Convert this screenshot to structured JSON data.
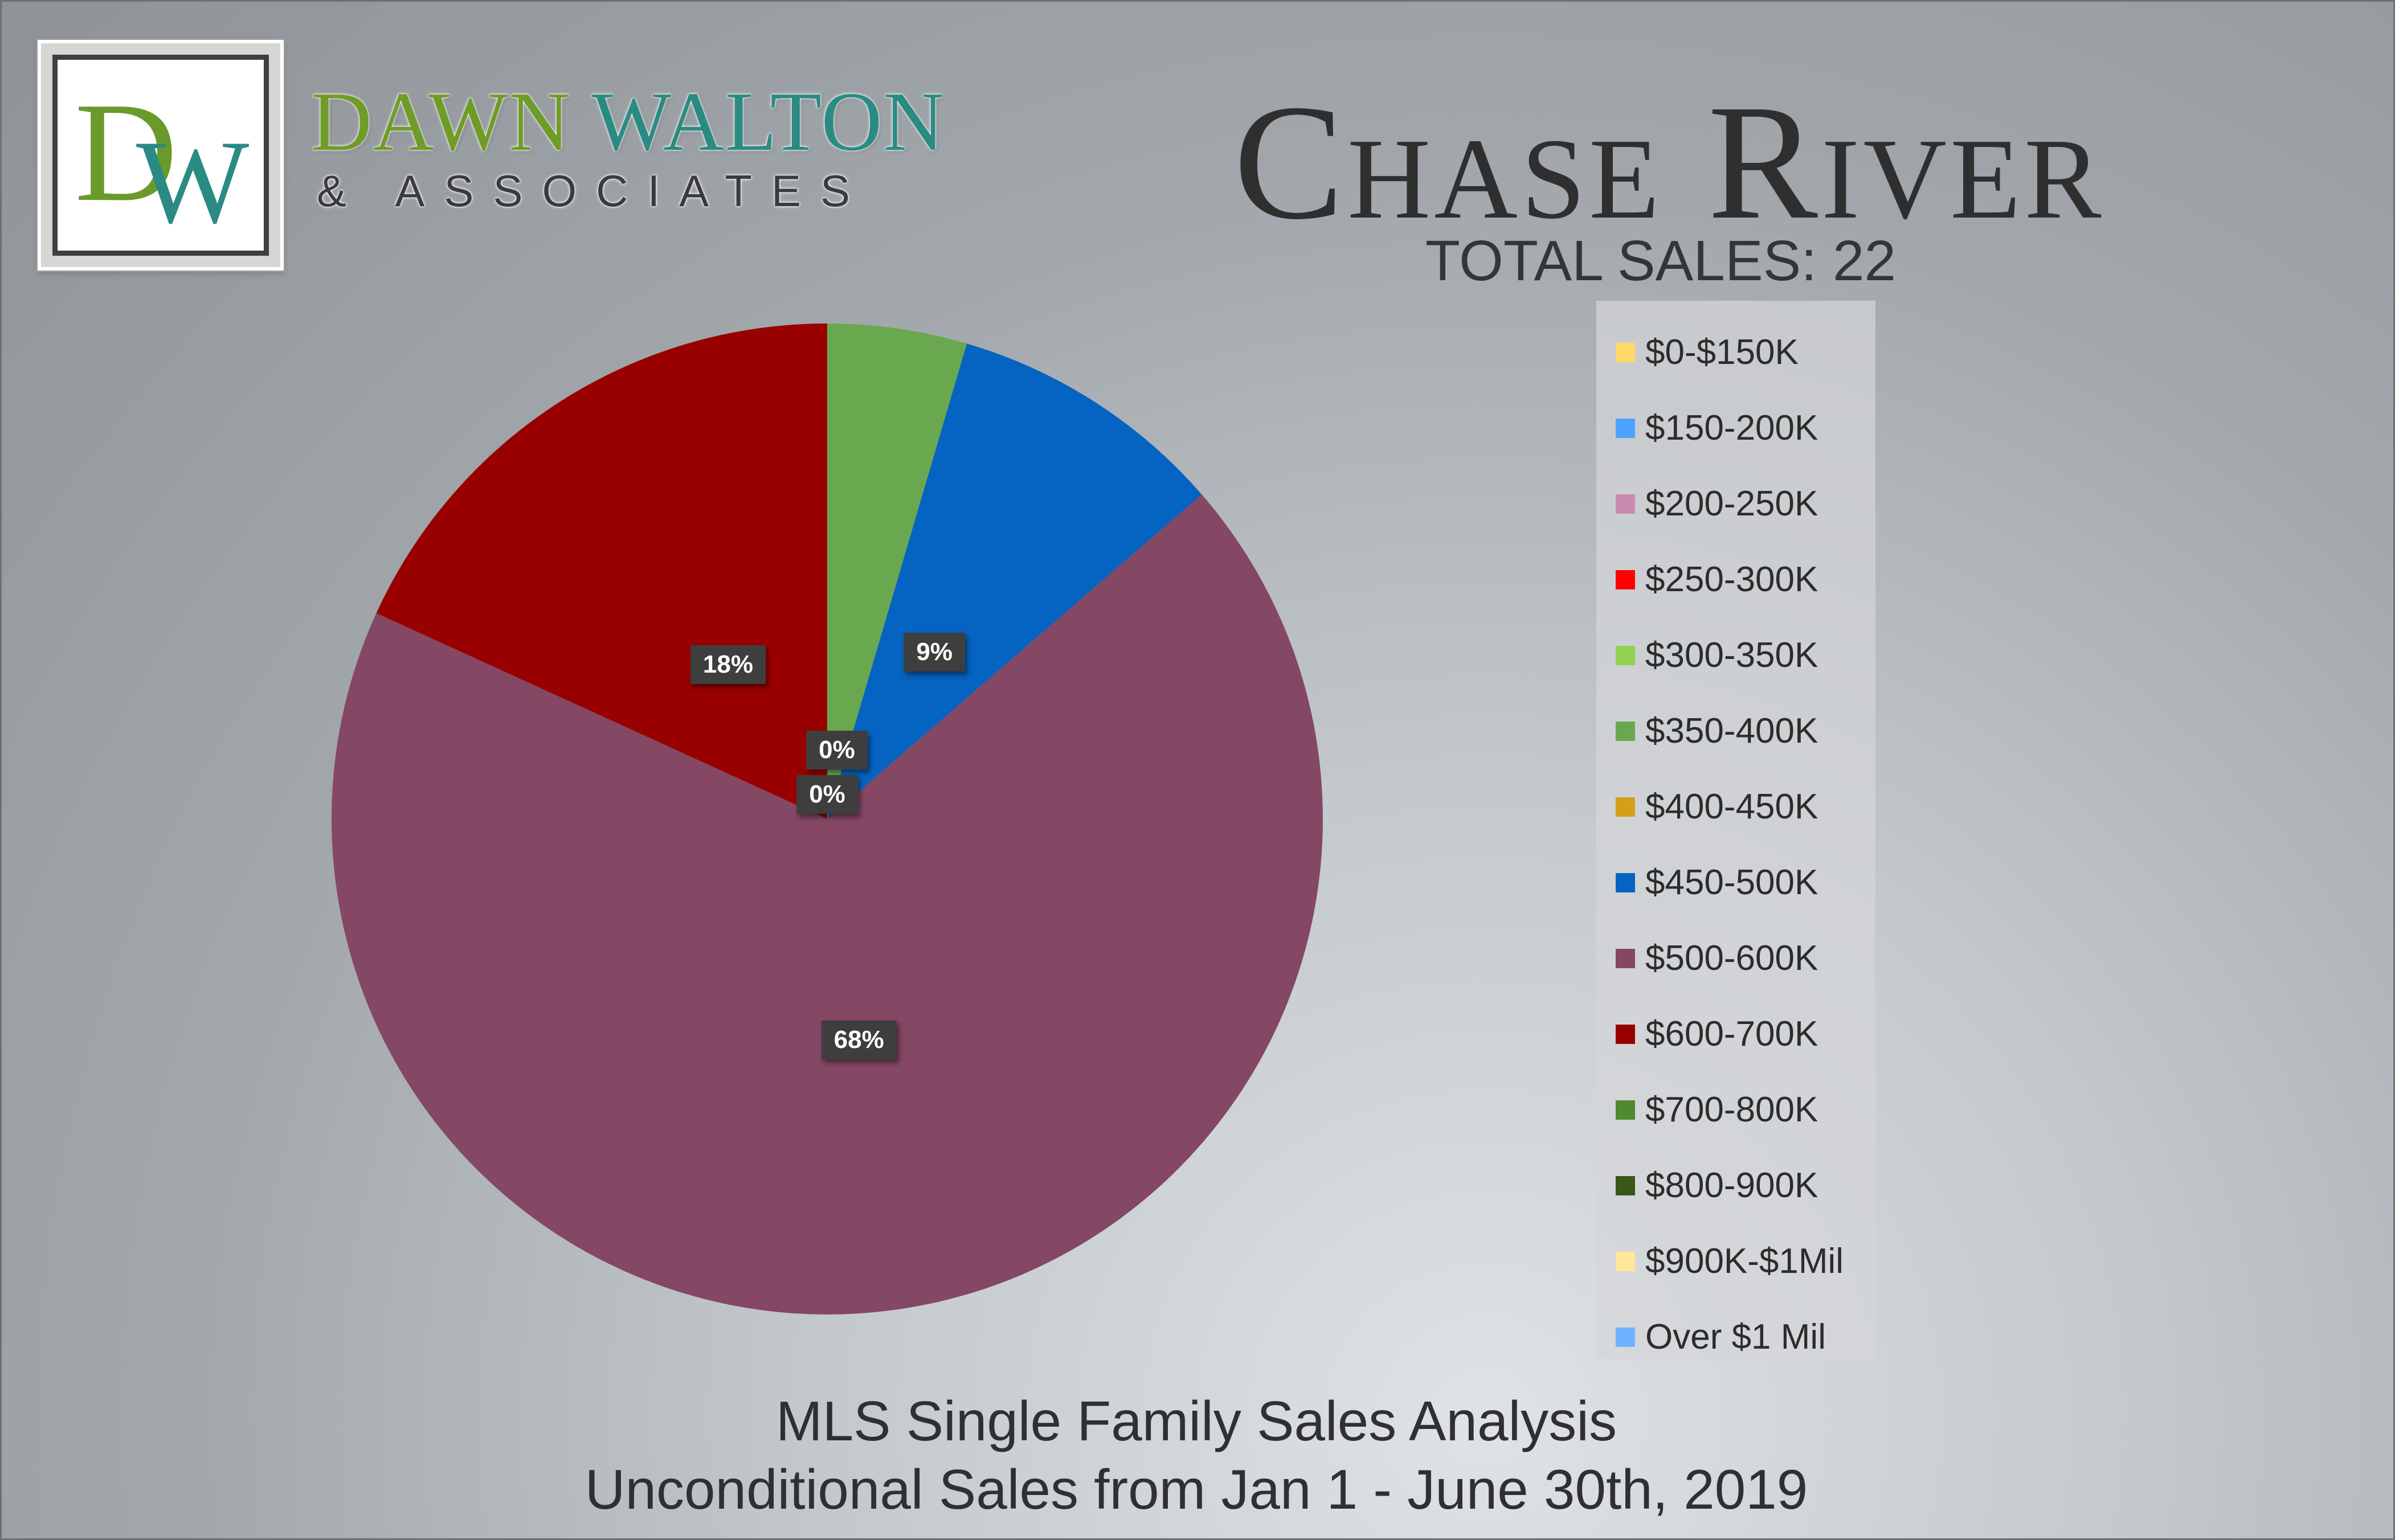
{
  "brand": {
    "monogram_d": "D",
    "monogram_w": "W",
    "name_word1": "DAWN",
    "name_word2": "WALTON",
    "subtitle": "& ASSOCIATES"
  },
  "header": {
    "title": "Chase River",
    "subtitle": "TOTAL SALES: 22"
  },
  "footer": {
    "line1": "MLS Single Family Sales Analysis",
    "line2": "Unconditional Sales from Jan 1 - June 30th, 2019"
  },
  "chart_data": {
    "type": "pie",
    "total_sales": 22,
    "categories": [
      "$0-$150K",
      "$150-200K",
      "$200-250K",
      "$250-300K",
      "$300-350K",
      "$350-400K",
      "$400-450K",
      "$450-500K",
      "$500-600K",
      "$600-700K",
      "$700-800K",
      "$800-900K",
      "$900K-$1Mil",
      "Over $1 Mil"
    ],
    "values": [
      0,
      0,
      0,
      0,
      0,
      1,
      0,
      2,
      15,
      4,
      0,
      0,
      0,
      0
    ],
    "colors": [
      "#ffd966",
      "#4da3ff",
      "#c98cb0",
      "#ff0000",
      "#92d050",
      "#6aa84f",
      "#d4a017",
      "#0563c1",
      "#844764",
      "#990000",
      "#4f8a2e",
      "#38571a",
      "#ffe699",
      "#6fb3ff"
    ],
    "data_labels": [
      {
        "text": "0%"
      },
      {
        "text": "0%"
      },
      {
        "text": "9%"
      },
      {
        "text": "68%"
      },
      {
        "text": "18%"
      }
    ],
    "legend_position": "right",
    "start_angle": "12 o'clock, clockwise"
  }
}
